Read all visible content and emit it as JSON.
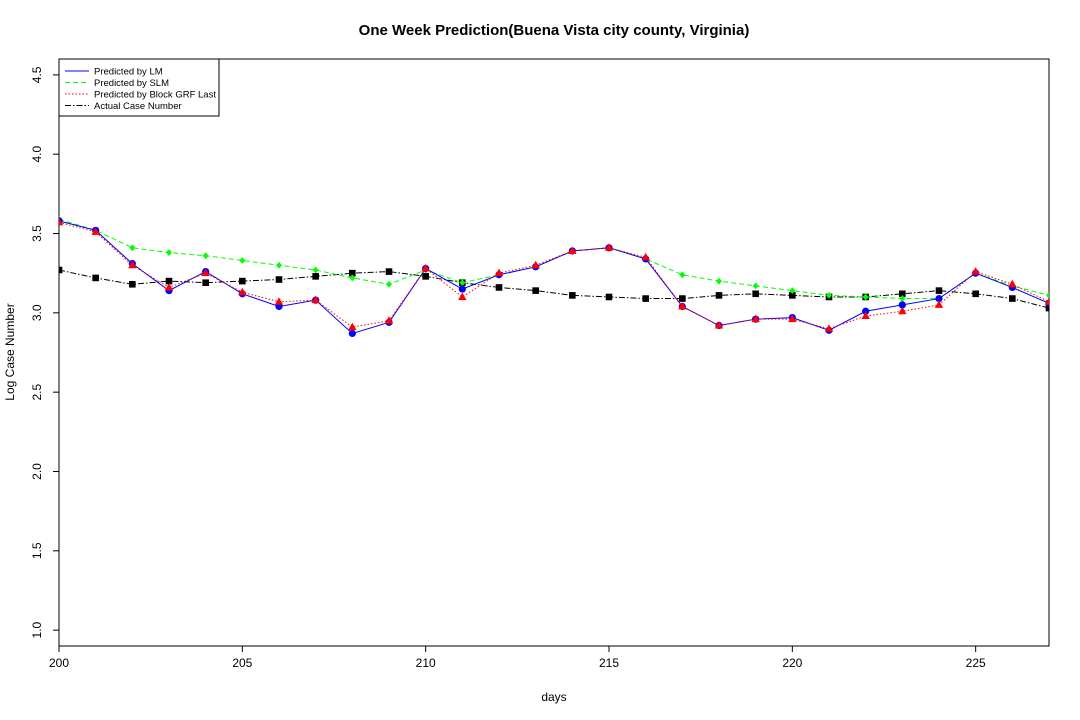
{
  "chart_data": {
    "type": "line",
    "title": "One Week Prediction(Buena Vista city county, Virginia)",
    "xlabel": "days",
    "ylabel": "Log Case Number",
    "xlim": [
      200,
      227
    ],
    "ylim": [
      0.9,
      4.6
    ],
    "xticks": [
      200,
      205,
      210,
      215,
      220,
      225
    ],
    "yticks": [
      1.0,
      1.5,
      2.0,
      2.5,
      3.0,
      3.5,
      4.0,
      4.5
    ],
    "grid": false,
    "legend_position": "top-left",
    "x": [
      200,
      201,
      202,
      203,
      204,
      205,
      206,
      207,
      208,
      209,
      210,
      211,
      212,
      213,
      214,
      215,
      216,
      217,
      218,
      219,
      220,
      221,
      222,
      223,
      224,
      225,
      226,
      227
    ],
    "series": [
      {
        "name": "Predicted by LM",
        "color": "#0000ff",
        "line_style": "solid",
        "marker": "circle",
        "values": [
          3.58,
          3.52,
          3.31,
          3.14,
          3.26,
          3.12,
          3.04,
          3.08,
          2.87,
          2.94,
          3.28,
          3.15,
          3.24,
          3.29,
          3.39,
          3.41,
          3.34,
          3.04,
          2.92,
          2.96,
          2.97,
          2.89,
          3.01,
          3.05,
          3.09,
          3.25,
          3.16,
          3.06
        ]
      },
      {
        "name": "Predicted by SLM",
        "color": "#00ff00",
        "line_style": "dashed",
        "marker": "diamond",
        "values": [
          3.59,
          3.52,
          3.41,
          3.38,
          3.36,
          3.33,
          3.3,
          3.27,
          3.22,
          3.18,
          3.27,
          3.19,
          3.24,
          3.29,
          3.39,
          3.41,
          3.34,
          3.24,
          3.2,
          3.17,
          3.14,
          3.11,
          3.1,
          3.09,
          3.09,
          3.25,
          3.17,
          3.11
        ]
      },
      {
        "name": "Predicted by Block GRF Last",
        "color": "#ff0000",
        "line_style": "dotted",
        "marker": "triangle",
        "values": [
          3.57,
          3.51,
          3.3,
          3.16,
          3.25,
          3.13,
          3.07,
          3.08,
          2.91,
          2.95,
          3.28,
          3.1,
          3.25,
          3.3,
          3.39,
          3.41,
          3.35,
          3.04,
          2.92,
          2.96,
          2.96,
          2.9,
          2.98,
          3.01,
          3.05,
          3.26,
          3.18,
          3.07
        ]
      },
      {
        "name": "Actual Case Number",
        "color": "#000000",
        "line_style": "dotdash",
        "marker": "square",
        "values": [
          3.27,
          3.22,
          3.18,
          3.2,
          3.19,
          3.2,
          3.21,
          3.23,
          3.25,
          3.26,
          3.23,
          3.19,
          3.16,
          3.14,
          3.11,
          3.1,
          3.09,
          3.09,
          3.11,
          3.12,
          3.11,
          3.1,
          3.1,
          3.12,
          3.14,
          3.12,
          3.09,
          3.03
        ]
      }
    ]
  }
}
